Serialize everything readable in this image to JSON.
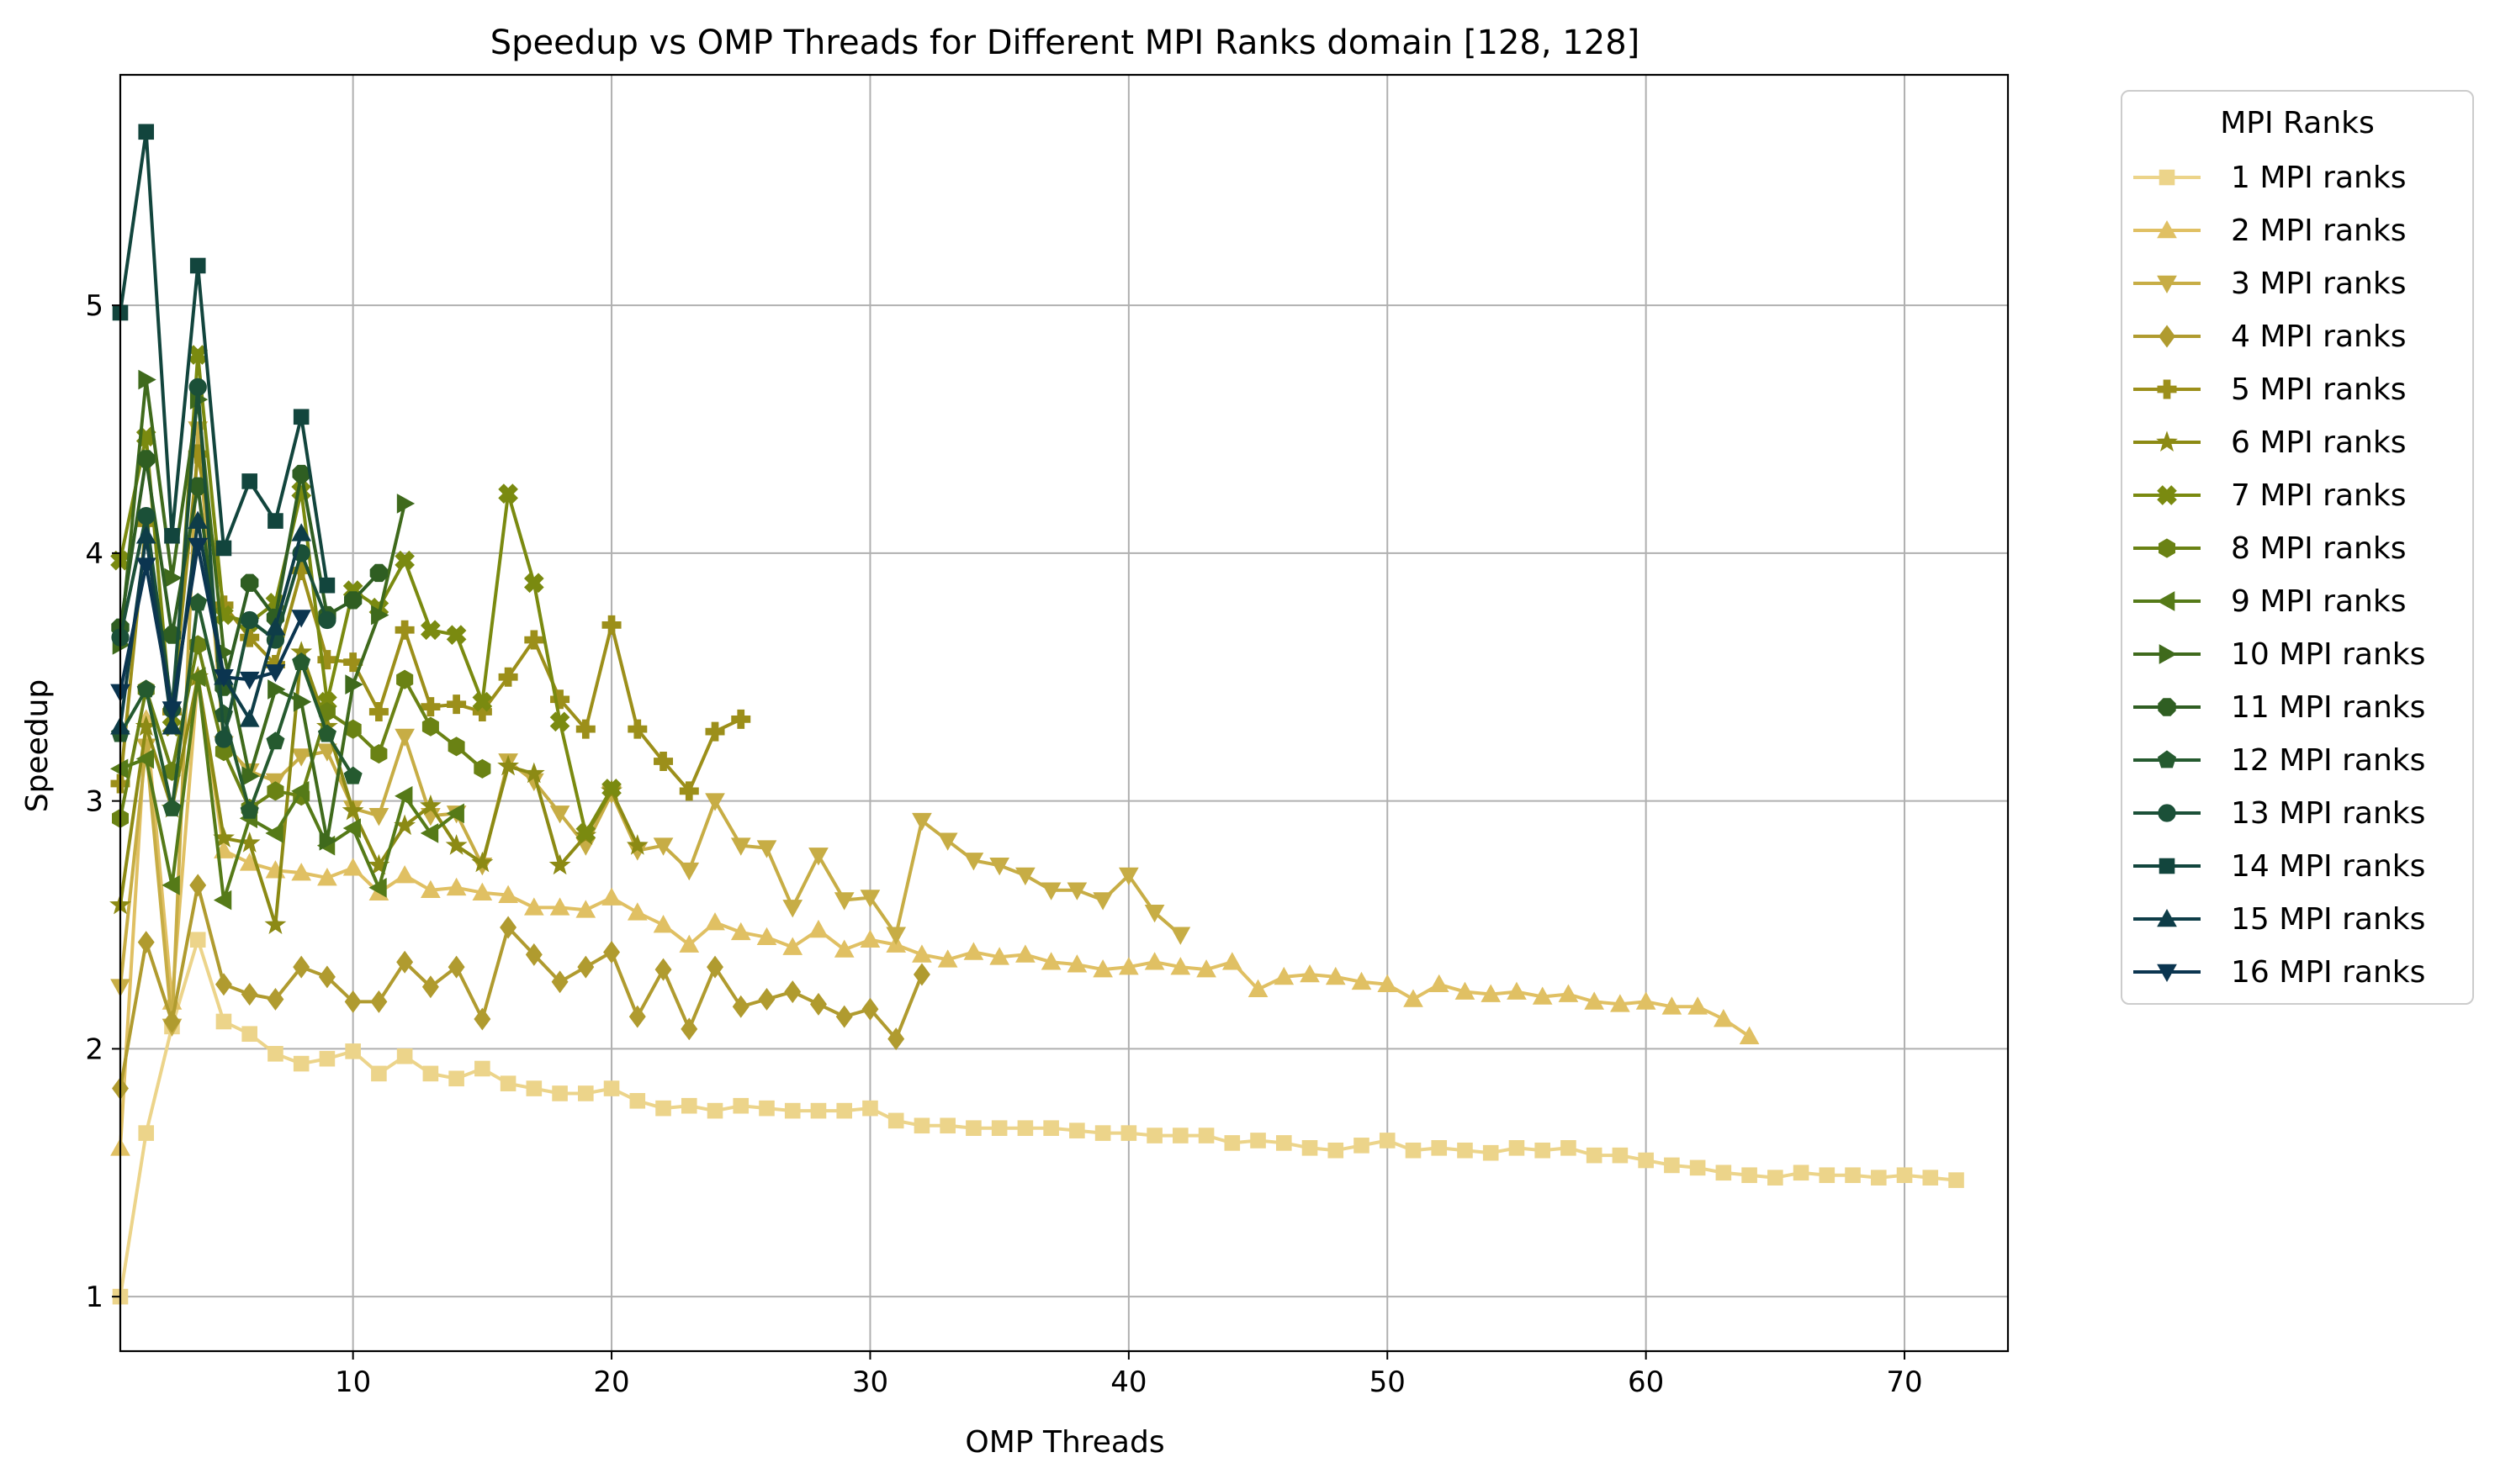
{
  "chart_data": {
    "type": "line",
    "title": "Speedup vs OMP Threads for Different MPI Ranks domain [128, 128]",
    "xlabel": "OMP Threads",
    "ylabel": "Speedup",
    "xlim": [
      1,
      74
    ],
    "ylim": [
      0.78,
      5.93
    ],
    "xticks": [
      10,
      20,
      30,
      40,
      50,
      60,
      70
    ],
    "yticks": [
      1,
      2,
      3,
      4,
      5
    ],
    "grid": true,
    "legend": {
      "title": "MPI Ranks",
      "placement": "outside-upper-right"
    },
    "series": [
      {
        "name": "1 MPI ranks",
        "color": "#ecd48a",
        "marker": "square",
        "x": [
          1,
          2,
          3,
          4,
          5,
          6,
          7,
          8,
          9,
          10,
          11,
          12,
          13,
          14,
          15,
          16,
          17,
          18,
          19,
          20,
          21,
          22,
          23,
          24,
          25,
          26,
          27,
          28,
          29,
          30,
          31,
          32,
          33,
          34,
          35,
          36,
          37,
          38,
          39,
          40,
          41,
          42,
          43,
          44,
          45,
          46,
          47,
          48,
          49,
          50,
          51,
          52,
          53,
          54,
          55,
          56,
          57,
          58,
          59,
          60,
          61,
          62,
          63,
          64,
          65,
          66,
          67,
          68,
          69,
          70,
          71,
          72
        ],
        "y": [
          1.0,
          1.66,
          2.09,
          2.44,
          2.11,
          2.06,
          1.98,
          1.94,
          1.96,
          1.99,
          1.9,
          1.97,
          1.9,
          1.88,
          1.92,
          1.86,
          1.84,
          1.82,
          1.82,
          1.84,
          1.79,
          1.76,
          1.77,
          1.75,
          1.77,
          1.76,
          1.75,
          1.75,
          1.75,
          1.76,
          1.71,
          1.69,
          1.69,
          1.68,
          1.68,
          1.68,
          1.68,
          1.67,
          1.66,
          1.66,
          1.65,
          1.65,
          1.65,
          1.62,
          1.63,
          1.62,
          1.6,
          1.59,
          1.61,
          1.63,
          1.59,
          1.6,
          1.59,
          1.58,
          1.6,
          1.59,
          1.6,
          1.57,
          1.57,
          1.55,
          1.53,
          1.52,
          1.5,
          1.49,
          1.48,
          1.5,
          1.49,
          1.49,
          1.48,
          1.49,
          1.48,
          1.47
        ]
      },
      {
        "name": "2 MPI ranks",
        "color": "#e0c063",
        "marker": "triangle-up",
        "x": [
          1,
          2,
          3,
          4,
          5,
          6,
          7,
          8,
          9,
          10,
          11,
          12,
          13,
          14,
          15,
          16,
          17,
          18,
          19,
          20,
          21,
          22,
          23,
          24,
          25,
          26,
          27,
          28,
          29,
          30,
          31,
          32,
          33,
          34,
          35,
          36,
          37,
          38,
          39,
          40,
          41,
          42,
          43,
          44,
          45,
          46,
          47,
          48,
          49,
          50,
          51,
          52,
          53,
          54,
          55,
          56,
          57,
          58,
          59,
          60,
          61,
          62,
          63,
          64
        ],
        "y": [
          1.6,
          3.33,
          2.19,
          3.5,
          2.8,
          2.75,
          2.72,
          2.71,
          2.69,
          2.73,
          2.63,
          2.7,
          2.64,
          2.65,
          2.63,
          2.62,
          2.57,
          2.57,
          2.56,
          2.61,
          2.55,
          2.5,
          2.42,
          2.51,
          2.47,
          2.45,
          2.41,
          2.48,
          2.4,
          2.44,
          2.42,
          2.38,
          2.36,
          2.39,
          2.37,
          2.38,
          2.35,
          2.34,
          2.32,
          2.33,
          2.35,
          2.33,
          2.32,
          2.35,
          2.24,
          2.29,
          2.3,
          2.29,
          2.27,
          2.26,
          2.2,
          2.26,
          2.23,
          2.22,
          2.23,
          2.21,
          2.22,
          2.19,
          2.18,
          2.19,
          2.17,
          2.17,
          2.12,
          2.05
        ]
      },
      {
        "name": "3 MPI ranks",
        "color": "#c7ad45",
        "marker": "triangle-down",
        "x": [
          1,
          2,
          3,
          4,
          5,
          6,
          7,
          8,
          9,
          10,
          11,
          12,
          13,
          14,
          15,
          16,
          17,
          18,
          19,
          20,
          21,
          22,
          23,
          24,
          25,
          26,
          27,
          28,
          29,
          30,
          31,
          32,
          33,
          34,
          35,
          36,
          37,
          38,
          39,
          40,
          41,
          42
        ],
        "y": [
          2.25,
          3.22,
          2.09,
          4.5,
          3.23,
          3.12,
          3.08,
          3.18,
          3.2,
          2.97,
          2.94,
          3.26,
          2.94,
          2.95,
          2.74,
          3.16,
          3.08,
          2.95,
          2.82,
          3.03,
          2.8,
          2.82,
          2.72,
          3.0,
          2.82,
          2.81,
          2.57,
          2.78,
          2.6,
          2.61,
          2.46,
          2.92,
          2.84,
          2.76,
          2.74,
          2.7,
          2.64,
          2.64,
          2.6,
          2.7,
          2.55,
          2.46
        ]
      },
      {
        "name": "4 MPI ranks",
        "color": "#b09b2f",
        "marker": "diamond",
        "x": [
          1,
          2,
          3,
          4,
          5,
          6,
          7,
          8,
          9,
          10,
          11,
          12,
          13,
          14,
          15,
          16,
          17,
          18,
          19,
          20,
          21,
          22,
          23,
          24,
          25,
          26,
          27,
          28,
          29,
          30,
          31,
          32
        ],
        "y": [
          1.84,
          2.43,
          2.11,
          2.66,
          2.26,
          2.22,
          2.2,
          2.33,
          2.29,
          2.19,
          2.19,
          2.35,
          2.25,
          2.33,
          2.12,
          2.49,
          2.38,
          2.27,
          2.33,
          2.39,
          2.13,
          2.32,
          2.08,
          2.33,
          2.17,
          2.2,
          2.23,
          2.18,
          2.13,
          2.16,
          2.04,
          2.3
        ]
      },
      {
        "name": "5 MPI ranks",
        "color": "#9c8f1a",
        "marker": "plus",
        "x": [
          1,
          2,
          3,
          4,
          5,
          6,
          7,
          8,
          9,
          10,
          11,
          12,
          13,
          14,
          15,
          16,
          17,
          18,
          19,
          20,
          21,
          22,
          23,
          24,
          25
        ],
        "y": [
          3.07,
          4.12,
          3.36,
          4.4,
          3.79,
          3.66,
          3.55,
          3.93,
          3.57,
          3.56,
          3.36,
          3.69,
          3.38,
          3.39,
          3.36,
          3.5,
          3.65,
          3.41,
          3.29,
          3.71,
          3.29,
          3.16,
          3.04,
          3.28,
          3.33
        ]
      },
      {
        "name": "6 MPI ranks",
        "color": "#8c8a14",
        "marker": "star",
        "x": [
          1,
          2,
          3,
          4,
          5,
          6,
          7,
          8,
          9,
          10,
          11,
          12,
          13,
          14,
          15,
          16,
          17,
          18,
          19,
          20,
          21
        ],
        "y": [
          2.58,
          3.3,
          2.97,
          3.5,
          2.85,
          2.83,
          2.5,
          3.6,
          3.3,
          2.96,
          2.74,
          2.9,
          2.98,
          2.82,
          2.75,
          3.14,
          3.11,
          2.74,
          2.86,
          3.04,
          2.82
        ]
      },
      {
        "name": "7 MPI ranks",
        "color": "#7a8a10",
        "marker": "x-filled",
        "x": [
          1,
          2,
          3,
          4,
          5,
          6,
          7,
          8,
          9,
          10,
          11,
          12,
          13,
          14,
          15,
          16,
          17,
          18,
          19,
          20
        ],
        "y": [
          3.97,
          4.47,
          3.3,
          4.8,
          3.75,
          3.72,
          3.8,
          4.25,
          3.4,
          3.85,
          3.78,
          3.97,
          3.69,
          3.67,
          3.4,
          4.24,
          3.88,
          3.32,
          2.87,
          3.05
        ]
      },
      {
        "name": "8 MPI ranks",
        "color": "#6a8214",
        "marker": "hexagon",
        "x": [
          1,
          2,
          3,
          4,
          5,
          6,
          7,
          8,
          9,
          10,
          11,
          12,
          13,
          14,
          15
        ],
        "y": [
          2.93,
          3.45,
          3.12,
          3.63,
          3.2,
          2.97,
          3.04,
          3.02,
          3.36,
          3.29,
          3.19,
          3.49,
          3.3,
          3.22,
          3.13
        ]
      },
      {
        "name": "9 MPI ranks",
        "color": "#557a18",
        "marker": "triangle-left",
        "x": [
          1,
          2,
          3,
          4,
          5,
          6,
          7,
          8,
          9,
          10,
          11,
          12,
          13,
          14
        ],
        "y": [
          3.13,
          3.17,
          2.66,
          3.5,
          2.6,
          2.93,
          2.87,
          3.04,
          2.82,
          2.89,
          2.65,
          3.02,
          2.87,
          2.95
        ]
      },
      {
        "name": "10 MPI ranks",
        "color": "#3f6a1c",
        "marker": "triangle-right",
        "x": [
          1,
          2,
          3,
          4,
          5,
          6,
          7,
          8,
          9,
          10,
          11,
          12
        ],
        "y": [
          3.63,
          4.7,
          3.9,
          4.62,
          3.6,
          3.1,
          3.45,
          3.4,
          2.84,
          3.47,
          3.75,
          4.2
        ]
      },
      {
        "name": "11 MPI ranks",
        "color": "#2f5e22",
        "marker": "octagon",
        "x": [
          1,
          2,
          3,
          4,
          5,
          6,
          7,
          8,
          9,
          10,
          11
        ],
        "y": [
          3.7,
          4.38,
          3.67,
          4.27,
          3.46,
          3.88,
          3.74,
          4.32,
          3.75,
          3.81,
          3.92
        ]
      },
      {
        "name": "12 MPI ranks",
        "color": "#255a2f",
        "marker": "pentagon",
        "x": [
          1,
          2,
          3,
          4,
          5,
          6,
          7,
          8,
          9,
          10
        ],
        "y": [
          3.27,
          3.45,
          2.97,
          3.8,
          3.35,
          2.96,
          3.24,
          3.56,
          3.27,
          3.1
        ]
      },
      {
        "name": "13 MPI ranks",
        "color": "#1b5038",
        "marker": "circle",
        "x": [
          1,
          2,
          3,
          4,
          5,
          6,
          7,
          8,
          9
        ],
        "y": [
          3.66,
          4.15,
          3.37,
          4.67,
          3.25,
          3.73,
          3.65,
          4.0,
          3.73
        ]
      },
      {
        "name": "14 MPI ranks",
        "color": "#12453d",
        "marker": "square",
        "x": [
          1,
          2,
          3,
          4,
          5,
          6,
          7,
          8,
          9
        ],
        "y": [
          4.97,
          5.7,
          4.07,
          5.16,
          4.02,
          4.29,
          4.13,
          4.55,
          3.87
        ]
      },
      {
        "name": "15 MPI ranks",
        "color": "#0e3d48",
        "marker": "triangle-up",
        "x": [
          1,
          2,
          3,
          4,
          5,
          6,
          7,
          8
        ],
        "y": [
          3.3,
          4.07,
          3.3,
          4.13,
          3.5,
          3.33,
          3.7,
          4.08
        ]
      },
      {
        "name": "16 MPI ranks",
        "color": "#0b3550",
        "marker": "triangle-down",
        "x": [
          1,
          2,
          3,
          4,
          5,
          6,
          7,
          8
        ],
        "y": [
          3.44,
          3.95,
          3.37,
          4.03,
          3.5,
          3.49,
          3.52,
          3.74
        ]
      }
    ]
  }
}
